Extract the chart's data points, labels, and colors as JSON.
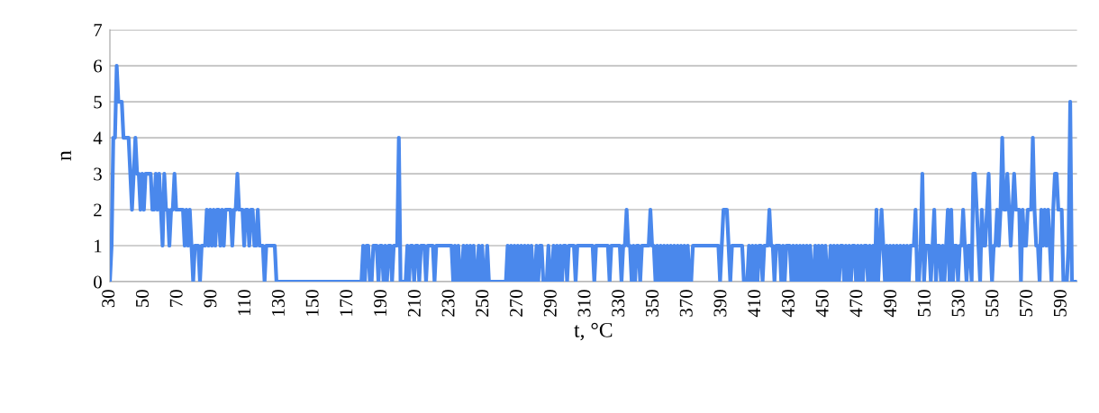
{
  "chart_data": {
    "type": "line",
    "xlabel": "t, °C",
    "ylabel": "n",
    "xlim": [
      30,
      599
    ],
    "xticks": [
      30,
      50,
      70,
      90,
      110,
      130,
      150,
      170,
      190,
      210,
      230,
      250,
      270,
      290,
      310,
      330,
      350,
      370,
      390,
      410,
      430,
      450,
      470,
      490,
      510,
      530,
      550,
      570,
      590
    ],
    "ylim": [
      0,
      7
    ],
    "yticks": [
      0,
      1,
      2,
      3,
      4,
      5,
      6,
      7
    ],
    "grid": "y",
    "marker": "none",
    "line_style": "solid",
    "x": [
      30,
      31,
      32,
      33,
      34,
      35,
      36,
      37,
      38,
      39,
      40,
      41,
      42,
      43,
      44,
      45,
      46,
      47,
      48,
      49,
      50,
      51,
      52,
      53,
      54,
      55,
      56,
      57,
      58,
      59,
      60,
      61,
      62,
      63,
      64,
      65,
      66,
      67,
      68,
      69,
      70,
      71,
      72,
      73,
      74,
      75,
      76,
      77,
      78,
      79,
      80,
      81,
      82,
      83,
      84,
      85,
      86,
      87,
      88,
      89,
      90,
      91,
      92,
      93,
      94,
      95,
      96,
      97,
      98,
      99,
      100,
      101,
      102,
      103,
      104,
      105,
      106,
      107,
      108,
      109,
      110,
      111,
      112,
      113,
      114,
      115,
      116,
      117,
      118,
      119,
      120,
      121,
      122,
      123,
      124,
      125,
      126,
      127,
      128,
      129,
      130,
      131,
      132,
      133,
      134,
      135,
      136,
      137,
      138,
      139,
      140,
      141,
      142,
      143,
      144,
      145,
      146,
      147,
      148,
      149,
      150,
      151,
      152,
      153,
      154,
      155,
      156,
      157,
      158,
      159,
      160,
      161,
      162,
      163,
      164,
      165,
      166,
      167,
      168,
      169,
      170,
      171,
      172,
      173,
      174,
      175,
      176,
      177,
      178,
      179,
      180,
      181,
      182,
      183,
      184,
      185,
      186,
      187,
      188,
      189,
      190,
      191,
      192,
      193,
      194,
      195,
      196,
      197,
      198,
      199,
      200,
      201,
      202,
      203,
      204,
      205,
      206,
      207,
      208,
      209,
      210,
      211,
      212,
      213,
      214,
      215,
      216,
      217,
      218,
      219,
      220,
      221,
      222,
      223,
      224,
      225,
      226,
      227,
      228,
      229,
      230,
      231,
      232,
      233,
      234,
      235,
      236,
      237,
      238,
      239,
      240,
      241,
      242,
      243,
      244,
      245,
      246,
      247,
      248,
      249,
      250,
      251,
      252,
      253,
      254,
      255,
      256,
      257,
      258,
      259,
      260,
      261,
      262,
      263,
      264,
      265,
      266,
      267,
      268,
      269,
      270,
      271,
      272,
      273,
      274,
      275,
      276,
      277,
      278,
      279,
      280,
      281,
      282,
      283,
      284,
      285,
      286,
      287,
      288,
      289,
      290,
      291,
      292,
      293,
      294,
      295,
      296,
      297,
      298,
      299,
      300,
      301,
      302,
      303,
      304,
      305,
      306,
      307,
      308,
      309,
      310,
      311,
      312,
      313,
      314,
      315,
      316,
      317,
      318,
      319,
      320,
      321,
      322,
      323,
      324,
      325,
      326,
      327,
      328,
      329,
      330,
      331,
      332,
      333,
      334,
      335,
      336,
      337,
      338,
      339,
      340,
      341,
      342,
      343,
      344,
      345,
      346,
      347,
      348,
      349,
      350,
      351,
      352,
      353,
      354,
      355,
      356,
      357,
      358,
      359,
      360,
      361,
      362,
      363,
      364,
      365,
      366,
      367,
      368,
      369,
      370,
      371,
      372,
      373,
      374,
      375,
      376,
      377,
      378,
      379,
      380,
      381,
      382,
      383,
      384,
      385,
      386,
      387,
      388,
      389,
      390,
      391,
      392,
      393,
      394,
      395,
      396,
      397,
      398,
      399,
      400,
      401,
      402,
      403,
      404,
      405,
      406,
      407,
      408,
      409,
      410,
      411,
      412,
      413,
      414,
      415,
      416,
      417,
      418,
      419,
      420,
      421,
      422,
      423,
      424,
      425,
      426,
      427,
      428,
      429,
      430,
      431,
      432,
      433,
      434,
      435,
      436,
      437,
      438,
      439,
      440,
      441,
      442,
      443,
      444,
      445,
      446,
      447,
      448,
      449,
      450,
      451,
      452,
      453,
      454,
      455,
      456,
      457,
      458,
      459,
      460,
      461,
      462,
      463,
      464,
      465,
      466,
      467,
      468,
      469,
      470,
      471,
      472,
      473,
      474,
      475,
      476,
      477,
      478,
      479,
      480,
      481,
      482,
      483,
      484,
      485,
      486,
      487,
      488,
      489,
      490,
      491,
      492,
      493,
      494,
      495,
      496,
      497,
      498,
      499,
      500,
      501,
      502,
      503,
      504,
      505,
      506,
      507,
      508,
      509,
      510,
      511,
      512,
      513,
      514,
      515,
      516,
      517,
      518,
      519,
      520,
      521,
      522,
      523,
      524,
      525,
      526,
      527,
      528,
      529,
      530,
      531,
      532,
      533,
      534,
      535,
      536,
      537,
      538,
      539,
      540,
      541,
      542,
      543,
      544,
      545,
      546,
      547,
      548,
      549,
      550,
      551,
      552,
      553,
      554,
      555,
      556,
      557,
      558,
      559,
      560,
      561,
      562,
      563,
      564,
      565,
      566,
      567,
      568,
      569,
      570,
      571,
      572,
      573,
      574,
      575,
      576,
      577,
      578,
      579,
      580,
      581,
      582,
      583,
      584,
      585,
      586,
      587,
      588,
      589,
      590,
      591,
      592,
      593,
      594,
      595,
      596,
      597,
      598
    ],
    "series": [
      {
        "color": "#4a88ec",
        "values": [
          0,
          1,
          4,
          4,
          6,
          5,
          5,
          5,
          4,
          4,
          4,
          4,
          3,
          2,
          3,
          4,
          3,
          3,
          2,
          3,
          2,
          3,
          3,
          3,
          3,
          2,
          2,
          3,
          2,
          3,
          2,
          1,
          3,
          2,
          2,
          1,
          2,
          2,
          3,
          2,
          2,
          2,
          2,
          2,
          1,
          2,
          1,
          2,
          1,
          0,
          1,
          1,
          1,
          0,
          1,
          1,
          1,
          2,
          1,
          2,
          1,
          2,
          1,
          2,
          2,
          1,
          2,
          1,
          2,
          2,
          2,
          2,
          1,
          2,
          2,
          3,
          2,
          2,
          2,
          1,
          2,
          2,
          1,
          2,
          2,
          1,
          1,
          2,
          1,
          1,
          1,
          0,
          1,
          1,
          1,
          1,
          1,
          1,
          0,
          0,
          0,
          0,
          0,
          0,
          0,
          0,
          0,
          0,
          0,
          0,
          0,
          0,
          0,
          0,
          0,
          0,
          0,
          0,
          0,
          0,
          0,
          0,
          0,
          0,
          0,
          0,
          0,
          0,
          0,
          0,
          0,
          0,
          0,
          0,
          0,
          0,
          0,
          0,
          0,
          0,
          0,
          0,
          0,
          0,
          0,
          0,
          0,
          0,
          0,
          1,
          0,
          1,
          1,
          0,
          0,
          1,
          1,
          1,
          0,
          1,
          1,
          0,
          1,
          0,
          1,
          1,
          0,
          1,
          1,
          1,
          4,
          0,
          0,
          0,
          0,
          1,
          0,
          1,
          1,
          0,
          1,
          1,
          0,
          1,
          1,
          1,
          0,
          1,
          1,
          1,
          1,
          0,
          1,
          1,
          1,
          1,
          1,
          1,
          1,
          1,
          1,
          1,
          0,
          1,
          0,
          1,
          0,
          0,
          1,
          0,
          1,
          0,
          1,
          0,
          1,
          0,
          0,
          1,
          0,
          1,
          0,
          0,
          1,
          0,
          0,
          0,
          0,
          0,
          0,
          0,
          0,
          0,
          0,
          0,
          1,
          0,
          1,
          0,
          1,
          0,
          1,
          0,
          1,
          0,
          1,
          0,
          1,
          0,
          1,
          0,
          0,
          1,
          0,
          1,
          1,
          0,
          0,
          0,
          1,
          0,
          0,
          1,
          0,
          1,
          0,
          1,
          0,
          1,
          1,
          0,
          1,
          1,
          1,
          1,
          0,
          1,
          1,
          1,
          1,
          1,
          1,
          1,
          1,
          1,
          1,
          0,
          1,
          1,
          1,
          1,
          1,
          1,
          1,
          1,
          0,
          1,
          1,
          1,
          1,
          1,
          1,
          0,
          1,
          1,
          2,
          1,
          1,
          0,
          1,
          0,
          1,
          1,
          0,
          1,
          1,
          1,
          1,
          1,
          2,
          1,
          1,
          0,
          1,
          0,
          1,
          0,
          1,
          0,
          1,
          0,
          1,
          0,
          1,
          0,
          1,
          0,
          1,
          0,
          1,
          0,
          1,
          0,
          0,
          1,
          1,
          1,
          1,
          1,
          1,
          1,
          1,
          1,
          1,
          1,
          1,
          1,
          1,
          1,
          1,
          0,
          1,
          2,
          2,
          2,
          1,
          0,
          1,
          1,
          1,
          1,
          1,
          1,
          1,
          0,
          0,
          0,
          1,
          0,
          1,
          0,
          1,
          0,
          1,
          1,
          0,
          1,
          1,
          1,
          2,
          1,
          1,
          0,
          1,
          1,
          1,
          0,
          1,
          0,
          1,
          1,
          1,
          0,
          1,
          0,
          1,
          0,
          1,
          0,
          1,
          0,
          1,
          0,
          1,
          0,
          0,
          1,
          0,
          1,
          0,
          1,
          0,
          1,
          0,
          0,
          1,
          0,
          1,
          0,
          1,
          0,
          1,
          1,
          0,
          1,
          0,
          1,
          0,
          1,
          1,
          0,
          1,
          0,
          1,
          0,
          1,
          1,
          0,
          1,
          0,
          1,
          0,
          2,
          0,
          1,
          2,
          1,
          0,
          1,
          0,
          1,
          0,
          1,
          0,
          1,
          0,
          1,
          0,
          1,
          0,
          1,
          0,
          1,
          1,
          1,
          2,
          0,
          0,
          1,
          3,
          0,
          1,
          1,
          1,
          0,
          1,
          2,
          0,
          1,
          1,
          0,
          1,
          0,
          1,
          2,
          0,
          2,
          0,
          1,
          1,
          0,
          1,
          1,
          2,
          1,
          0,
          1,
          1,
          0,
          3,
          3,
          2,
          1,
          0,
          2,
          1,
          1,
          2,
          3,
          1,
          0,
          1,
          1,
          2,
          1,
          2,
          4,
          2,
          2,
          3,
          2,
          1,
          2,
          3,
          2,
          2,
          2,
          0,
          2,
          1,
          1,
          2,
          2,
          2,
          4,
          2,
          1,
          1,
          0,
          2,
          1,
          2,
          1,
          2,
          1,
          0,
          2,
          3,
          3,
          2,
          2,
          2,
          0,
          0,
          0,
          1,
          5,
          0,
          0,
          0
        ]
      }
    ]
  }
}
